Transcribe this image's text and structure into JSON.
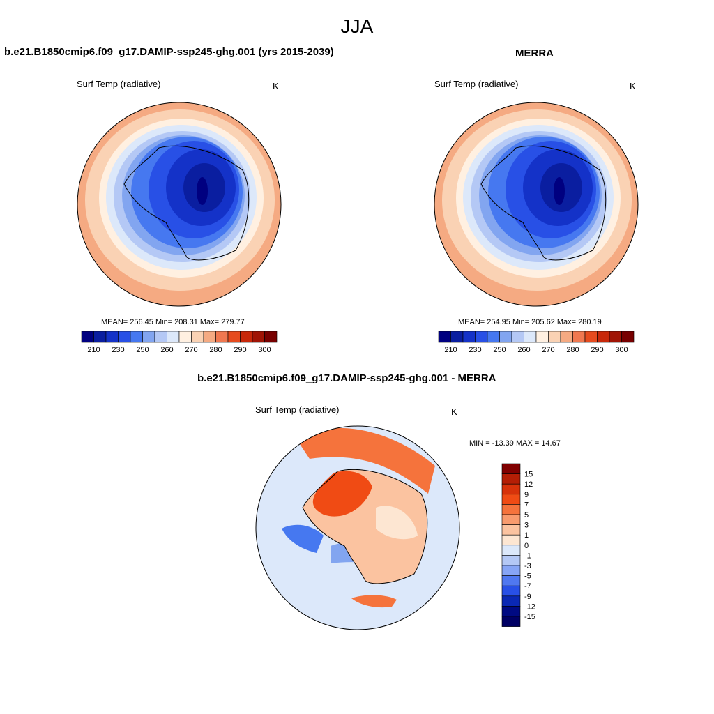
{
  "figure_title": "JJA",
  "panels": {
    "model": {
      "title": "b.e21.B1850cmip6.f09_g17.DAMIP-ssp245-ghg.001 (yrs 2015-2039)",
      "variable": "Surf Temp (radiative)",
      "units": "K",
      "stats": "MEAN= 256.45  Min= 208.31  Max= 279.77"
    },
    "obs": {
      "title": "MERRA",
      "variable": "Surf Temp (radiative)",
      "units": "K",
      "stats": "MEAN= 254.95  Min= 205.62  Max= 280.19"
    },
    "diff": {
      "title": "b.e21.B1850cmip6.f09_g17.DAMIP-ssp245-ghg.001 - MERRA",
      "variable": "Surf Temp (radiative)",
      "units": "K",
      "stats": "MIN = -13.39 MAX =  14.67"
    }
  },
  "colorbars": {
    "absolute": {
      "tick_labels": [
        "210",
        "230",
        "250",
        "260",
        "270",
        "280",
        "290",
        "300"
      ],
      "colors": [
        "#000080",
        "#0a1ea0",
        "#1432c8",
        "#2850e6",
        "#4678f0",
        "#82a5f0",
        "#b4c8f5",
        "#dce8fa",
        "#fff0e1",
        "#fad2b4",
        "#f5aa82",
        "#f07850",
        "#e64b1e",
        "#c8280a",
        "#a01405",
        "#780000"
      ]
    },
    "difference": {
      "tick_labels": [
        "15",
        "12",
        "9",
        "7",
        "5",
        "3",
        "1",
        "0",
        "-1",
        "-3",
        "-5",
        "-7",
        "-9",
        "-12",
        "-15"
      ],
      "colors": [
        "#800000",
        "#b41e05",
        "#d7320a",
        "#f04b14",
        "#f5733c",
        "#f89b6e",
        "#fbc3a0",
        "#fde6d2",
        "#dce8fa",
        "#b4c8f5",
        "#87a5f5",
        "#5078f0",
        "#2850e6",
        "#0a28b4",
        "#000a82",
        "#000064"
      ]
    }
  }
}
